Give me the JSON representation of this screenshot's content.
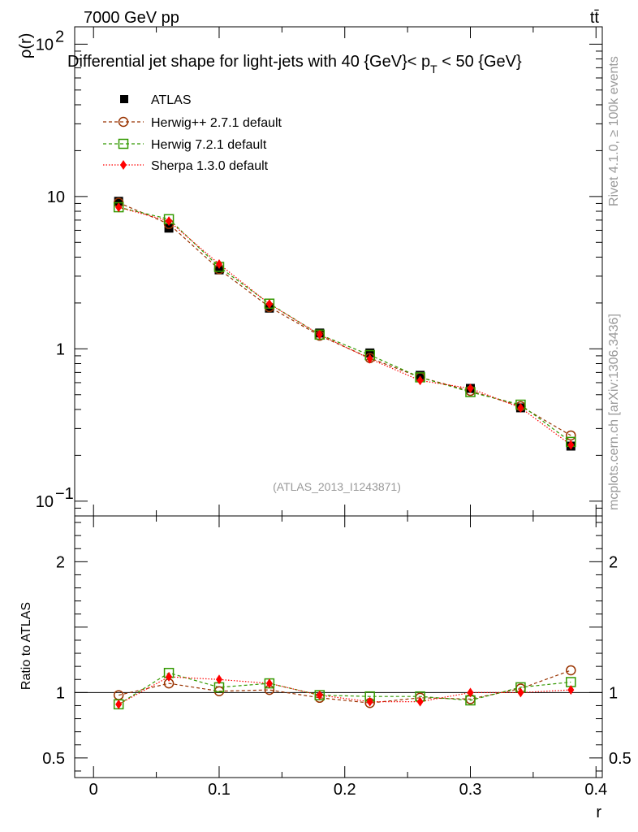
{
  "header": {
    "energy": "7000 GeV pp",
    "process": "tt̄",
    "title": "Differential jet shape for light-jets with 40 {GeV}< p_T < 50 {GeV}",
    "title_main": "Differential jet shape for light-jets with 40 {GeV}< p",
    "title_sub": "T",
    "title_end": " < 50 {GeV}"
  },
  "side_labels": {
    "rivet": "Rivet 4.1.0, ≥ 100k events",
    "mcplots": "mcplots.cern.ch [arXiv:1306.3436]"
  },
  "watermark": "(ATLAS_2013_I1243871)",
  "colors": {
    "atlas": "#000000",
    "herwigpp": "#993300",
    "herwig7": "#339900",
    "sherpa": "#ff0000",
    "sidetext": "#999999"
  },
  "chart_data": [
    {
      "type": "line",
      "panel": "main",
      "ylabel": "ρ(r)",
      "xlabel": "r",
      "yscale": "log",
      "ylim": [
        0.08,
        130
      ],
      "xlim": [
        -0.015,
        0.405
      ],
      "ytick_labels": [
        {
          "value": 0.1,
          "base": "10",
          "exp": "−1"
        },
        {
          "value": 1,
          "base": "1",
          "exp": ""
        },
        {
          "value": 10,
          "base": "10",
          "exp": ""
        },
        {
          "value": 100,
          "base": "10",
          "exp": "2"
        }
      ],
      "x": [
        0.02,
        0.06,
        0.1,
        0.14,
        0.18,
        0.22,
        0.26,
        0.3,
        0.34,
        0.38
      ],
      "series": [
        {
          "name": "ATLAS",
          "style": "data",
          "values": [
            9.3,
            6.2,
            3.3,
            1.85,
            1.27,
            0.94,
            0.67,
            0.55,
            0.41,
            0.23
          ]
        },
        {
          "name": "Herwig++ 2.7.1 default",
          "style": "circle",
          "values": [
            9.1,
            6.6,
            3.33,
            1.88,
            1.22,
            0.87,
            0.65,
            0.53,
            0.42,
            0.27
          ]
        },
        {
          "name": "Herwig 7.2.1 default",
          "style": "square",
          "values": [
            8.5,
            7.1,
            3.45,
            1.98,
            1.24,
            0.91,
            0.65,
            0.52,
            0.43,
            0.245
          ]
        },
        {
          "name": "Sherpa 1.3.0 default",
          "style": "diamond",
          "values": [
            8.5,
            6.9,
            3.6,
            1.97,
            1.24,
            0.86,
            0.62,
            0.55,
            0.41,
            0.234
          ]
        }
      ]
    },
    {
      "type": "line",
      "panel": "ratio",
      "ylabel": "Ratio to ATLAS",
      "xlabel": "r",
      "ylim": [
        0.35,
        2.35
      ],
      "xlim": [
        -0.015,
        0.405
      ],
      "yticks": [
        0.5,
        1,
        2
      ],
      "ytick_labels": [
        "0.5",
        "1",
        "2"
      ],
      "xticks": [
        0,
        0.1,
        0.2,
        0.3,
        0.4
      ],
      "xtick_labels": [
        "0",
        "0.1",
        "0.2",
        "0.3",
        "0.4"
      ],
      "x": [
        0.02,
        0.06,
        0.1,
        0.14,
        0.18,
        0.22,
        0.26,
        0.3,
        0.34,
        0.38
      ],
      "series": [
        {
          "name": "Herwig++ 2.7.1 default",
          "style": "circle",
          "values": [
            0.98,
            1.07,
            1.01,
            1.02,
            0.96,
            0.92,
            0.96,
            0.95,
            1.03,
            1.17
          ]
        },
        {
          "name": "Herwig 7.2.1 default",
          "style": "square",
          "values": [
            0.91,
            1.15,
            1.04,
            1.07,
            0.98,
            0.97,
            0.97,
            0.94,
            1.04,
            1.08
          ]
        },
        {
          "name": "Sherpa 1.3.0 default",
          "style": "diamond",
          "values": [
            0.91,
            1.12,
            1.1,
            1.07,
            0.98,
            0.93,
            0.93,
            1.0,
            1.0,
            1.02
          ]
        }
      ]
    }
  ]
}
